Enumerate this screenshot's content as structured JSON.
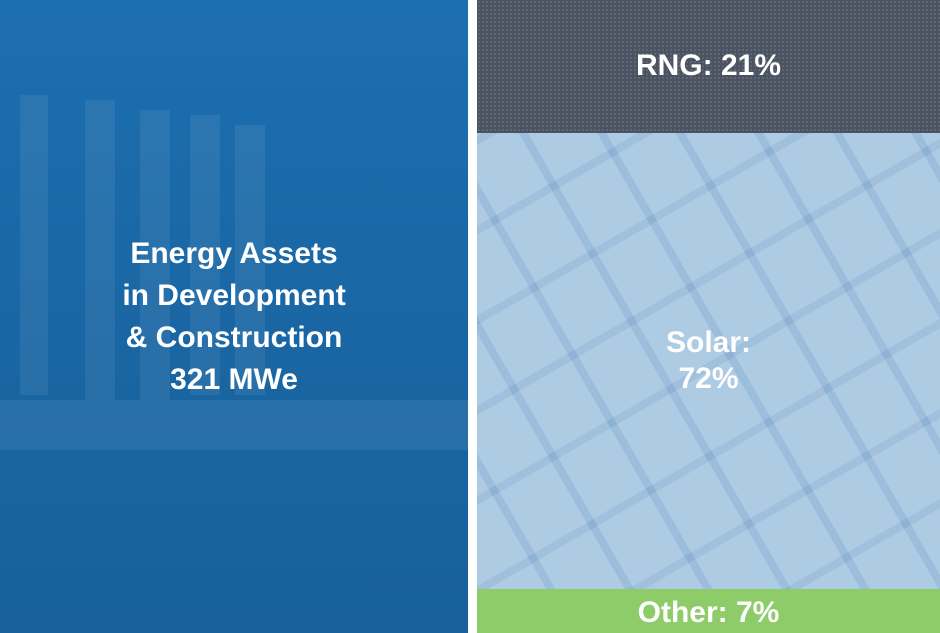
{
  "chart_data": {
    "type": "stacked-share",
    "title_lines": [
      "Energy Assets",
      "in Development",
      "& Construction",
      "321 MWe"
    ],
    "values": [
      21,
      72,
      7
    ],
    "value_labels": [
      "RNG: 21%",
      "Solar: 72%",
      "Other: 7%"
    ],
    "colors": [
      "#4a5361",
      "#9dc0de",
      "#8ecb69"
    ]
  }
}
